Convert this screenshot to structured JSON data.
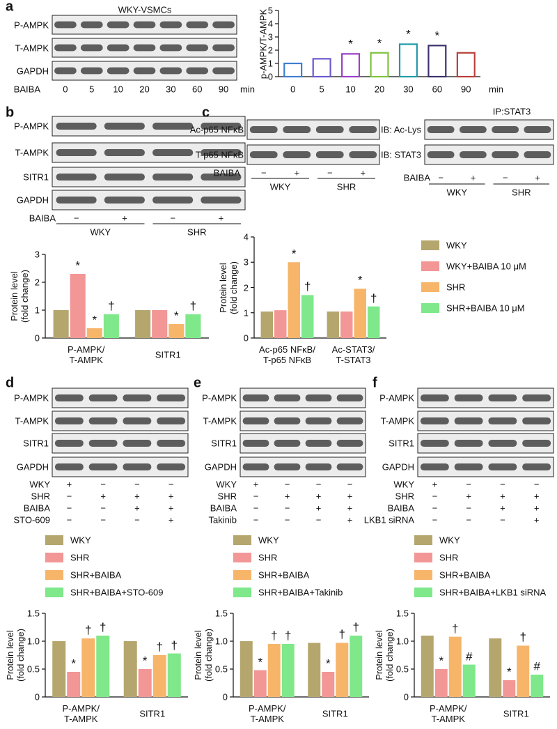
{
  "panel_labels": [
    "a",
    "b",
    "c",
    "d",
    "e",
    "f"
  ],
  "blots": [
    {
      "title": "WKY-VSMCs",
      "rows": [
        "P-AMPK",
        "T-AMPK",
        "GAPDH"
      ],
      "treatments": [
        {
          "name": "BAIBA",
          "marks": [
            "0",
            "5",
            "10",
            "20",
            "30",
            "60",
            "90"
          ]
        }
      ],
      "unit": "min"
    },
    {
      "rows": [
        "P-AMPK",
        "T-AMPK",
        "SITR1",
        "GAPDH"
      ],
      "treatments": [
        {
          "name": "BAIBA",
          "marks": [
            "−",
            "+",
            "−",
            "+"
          ]
        }
      ],
      "groups": [
        "WKY",
        "SHR"
      ]
    },
    {
      "rows": [
        "Ac-p65 NFκB",
        "T-p65 NFκB"
      ],
      "treatments": [
        {
          "name": "BAIBA",
          "marks": [
            "−",
            "+",
            "−",
            "+"
          ]
        }
      ],
      "groups": [
        "WKY",
        "SHR"
      ]
    },
    {
      "title": "IP:STAT3",
      "rows": [
        "IB: Ac-Lys",
        "IB: STAT3"
      ],
      "treatments": [
        {
          "name": "BAIBA",
          "marks": [
            "−",
            "+",
            "−",
            "+"
          ]
        }
      ],
      "groups": [
        "WKY",
        "SHR"
      ]
    },
    {
      "rows": [
        "P-AMPK",
        "T-AMPK",
        "SITR1",
        "GAPDH"
      ],
      "treatments": [
        {
          "name": "WKY",
          "marks": [
            "+",
            "−",
            "−",
            "−"
          ]
        },
        {
          "name": "SHR",
          "marks": [
            "−",
            "+",
            "+",
            "+"
          ]
        },
        {
          "name": "BAIBA",
          "marks": [
            "−",
            "−",
            "+",
            "+"
          ]
        },
        {
          "name": "STO-609",
          "marks": [
            "−",
            "−",
            "−",
            "+"
          ]
        }
      ]
    },
    {
      "rows": [
        "P-AMPK",
        "T-AMPK",
        "SITR1",
        "GAPDH"
      ],
      "treatments": [
        {
          "name": "WKY",
          "marks": [
            "+",
            "−",
            "−",
            "−"
          ]
        },
        {
          "name": "SHR",
          "marks": [
            "−",
            "+",
            "+",
            "+"
          ]
        },
        {
          "name": "BAIBA",
          "marks": [
            "−",
            "−",
            "+",
            "+"
          ]
        },
        {
          "name": "Takinib",
          "marks": [
            "−",
            "−",
            "−",
            "+"
          ]
        }
      ]
    },
    {
      "rows": [
        "P-AMPK",
        "T-AMPK",
        "SITR1",
        "GAPDH"
      ],
      "treatments": [
        {
          "name": "WKY",
          "marks": [
            "+",
            "−",
            "−",
            "−"
          ]
        },
        {
          "name": "SHR",
          "marks": [
            "−",
            "+",
            "+",
            "+"
          ]
        },
        {
          "name": "BAIBA",
          "marks": [
            "−",
            "−",
            "+",
            "+"
          ]
        },
        {
          "name": "LKB1 siRNA",
          "marks": [
            "−",
            "−",
            "−",
            "+"
          ]
        }
      ]
    }
  ],
  "chart_data": [
    {
      "type": "bar",
      "ylabel": "p-AMPK/T-AMPK",
      "xlabel": "min",
      "categories": [
        "0",
        "5",
        "10",
        "20",
        "30",
        "60",
        "90"
      ],
      "values": [
        1.0,
        1.35,
        1.72,
        1.8,
        2.45,
        2.35,
        1.8
      ],
      "colors": [
        "#3d7fd1",
        "#6a5acd",
        "#9b3fc6",
        "#7fc241",
        "#1f9aa8",
        "#3b2f6e",
        "#b8403a"
      ],
      "annotations": [
        null,
        null,
        "*",
        "*",
        "*",
        "*",
        null
      ],
      "ylim": [
        0,
        5
      ],
      "yticks": [
        0,
        1,
        2,
        3,
        4,
        5
      ]
    },
    {
      "type": "grouped_bar",
      "ylabel": "Protein level\n(fold change)",
      "categories": [
        "P-AMPK/\nT-AMPK",
        "SITR1"
      ],
      "series": [
        {
          "color": "#b5a66e",
          "values": [
            1.0,
            1.0
          ],
          "annotations": [
            null,
            null
          ]
        },
        {
          "color": "#f29696",
          "values": [
            2.3,
            1.0
          ],
          "annotations": [
            "*",
            null
          ]
        },
        {
          "color": "#f7b56a",
          "values": [
            0.35,
            0.5
          ],
          "annotations": [
            "*",
            "*"
          ]
        },
        {
          "color": "#7ee88a",
          "values": [
            0.85,
            0.85
          ],
          "annotations": [
            "†",
            "†"
          ]
        }
      ],
      "ylim": [
        0,
        3
      ],
      "yticks": [
        0,
        1,
        2,
        3
      ]
    },
    {
      "type": "grouped_bar",
      "ylabel": "Protein level\n(fold change)",
      "legend": "right",
      "categories": [
        "Ac-p65 NFκB/\nT-p65 NFκB",
        "Ac-STAT3/\nT-STAT3"
      ],
      "series": [
        {
          "name": "WKY",
          "color": "#b5a66e",
          "values": [
            1.05,
            1.05
          ],
          "annotations": [
            null,
            null
          ]
        },
        {
          "name": "WKY+BAIBA 10 μM",
          "color": "#f29696",
          "values": [
            1.1,
            1.05
          ],
          "annotations": [
            null,
            null
          ]
        },
        {
          "name": "SHR",
          "color": "#f7b56a",
          "values": [
            3.0,
            1.95
          ],
          "annotations": [
            "*",
            "*"
          ]
        },
        {
          "name": "SHR+BAIBA 10 μM",
          "color": "#7ee88a",
          "values": [
            1.7,
            1.25
          ],
          "annotations": [
            "†",
            "†"
          ]
        }
      ],
      "ylim": [
        0,
        4
      ],
      "yticks": [
        0,
        1,
        2,
        3,
        4
      ]
    },
    {
      "type": "grouped_bar",
      "ylabel": "Protein level\n(fold change)",
      "legend": "top",
      "categories": [
        "P-AMPK/\nT-AMPK",
        "SITR1"
      ],
      "series": [
        {
          "name": "WKY",
          "color": "#b5a66e",
          "values": [
            1.0,
            1.0
          ],
          "annotations": [
            null,
            null
          ]
        },
        {
          "name": "SHR",
          "color": "#f29696",
          "values": [
            0.45,
            0.5
          ],
          "annotations": [
            "*",
            "*"
          ]
        },
        {
          "name": "SHR+BAIBA",
          "color": "#f7b56a",
          "values": [
            1.05,
            0.75
          ],
          "annotations": [
            "†",
            "†"
          ]
        },
        {
          "name": "SHR+BAIBA+STO-609",
          "color": "#7ee88a",
          "values": [
            1.1,
            0.78
          ],
          "annotations": [
            "†",
            "†"
          ]
        }
      ],
      "ylim": [
        0,
        1.5
      ],
      "yticks": [
        0,
        0.5,
        {
          "value": 1,
          "label": "1.0"
        },
        1.5
      ]
    },
    {
      "type": "grouped_bar",
      "ylabel": "Protein level\n(fold change)",
      "legend": "top",
      "categories": [
        "P-AMPK/\nT-AMPK",
        "SITR1"
      ],
      "series": [
        {
          "name": "WKY",
          "color": "#b5a66e",
          "values": [
            1.0,
            0.97
          ],
          "annotations": [
            null,
            null
          ]
        },
        {
          "name": "SHR",
          "color": "#f29696",
          "values": [
            0.48,
            0.45
          ],
          "annotations": [
            "*",
            "*"
          ]
        },
        {
          "name": "SHR+BAIBA",
          "color": "#f7b56a",
          "values": [
            0.95,
            0.97
          ],
          "annotations": [
            "†",
            "†"
          ]
        },
        {
          "name": "SHR+BAIBA+Takinib",
          "color": "#7ee88a",
          "values": [
            0.95,
            1.1
          ],
          "annotations": [
            "†",
            "†"
          ]
        }
      ],
      "ylim": [
        0,
        1.5
      ],
      "yticks": [
        0,
        0.5,
        {
          "value": 1,
          "label": "1.0"
        },
        1.5
      ]
    },
    {
      "type": "grouped_bar",
      "ylabel": "Protein level\n(fold change)",
      "legend": "top",
      "categories": [
        "P-AMPK/\nT-AMPK",
        "SITR1"
      ],
      "series": [
        {
          "name": "WKY",
          "color": "#b5a66e",
          "values": [
            1.1,
            1.05
          ],
          "annotations": [
            null,
            null
          ]
        },
        {
          "name": "SHR",
          "color": "#f29696",
          "values": [
            0.5,
            0.3
          ],
          "annotations": [
            "*",
            "*"
          ]
        },
        {
          "name": "SHR+BAIBA",
          "color": "#f7b56a",
          "values": [
            1.08,
            0.92
          ],
          "annotations": [
            "†",
            "†"
          ]
        },
        {
          "name": "SHR+BAIBA+LKB1 siRNA",
          "color": "#7ee88a",
          "values": [
            0.58,
            0.4
          ],
          "annotations": [
            "#",
            "#"
          ]
        }
      ],
      "ylim": [
        0,
        1.5
      ],
      "yticks": [
        0,
        0.5,
        {
          "value": 1,
          "label": "1.0"
        },
        1.5
      ]
    }
  ]
}
